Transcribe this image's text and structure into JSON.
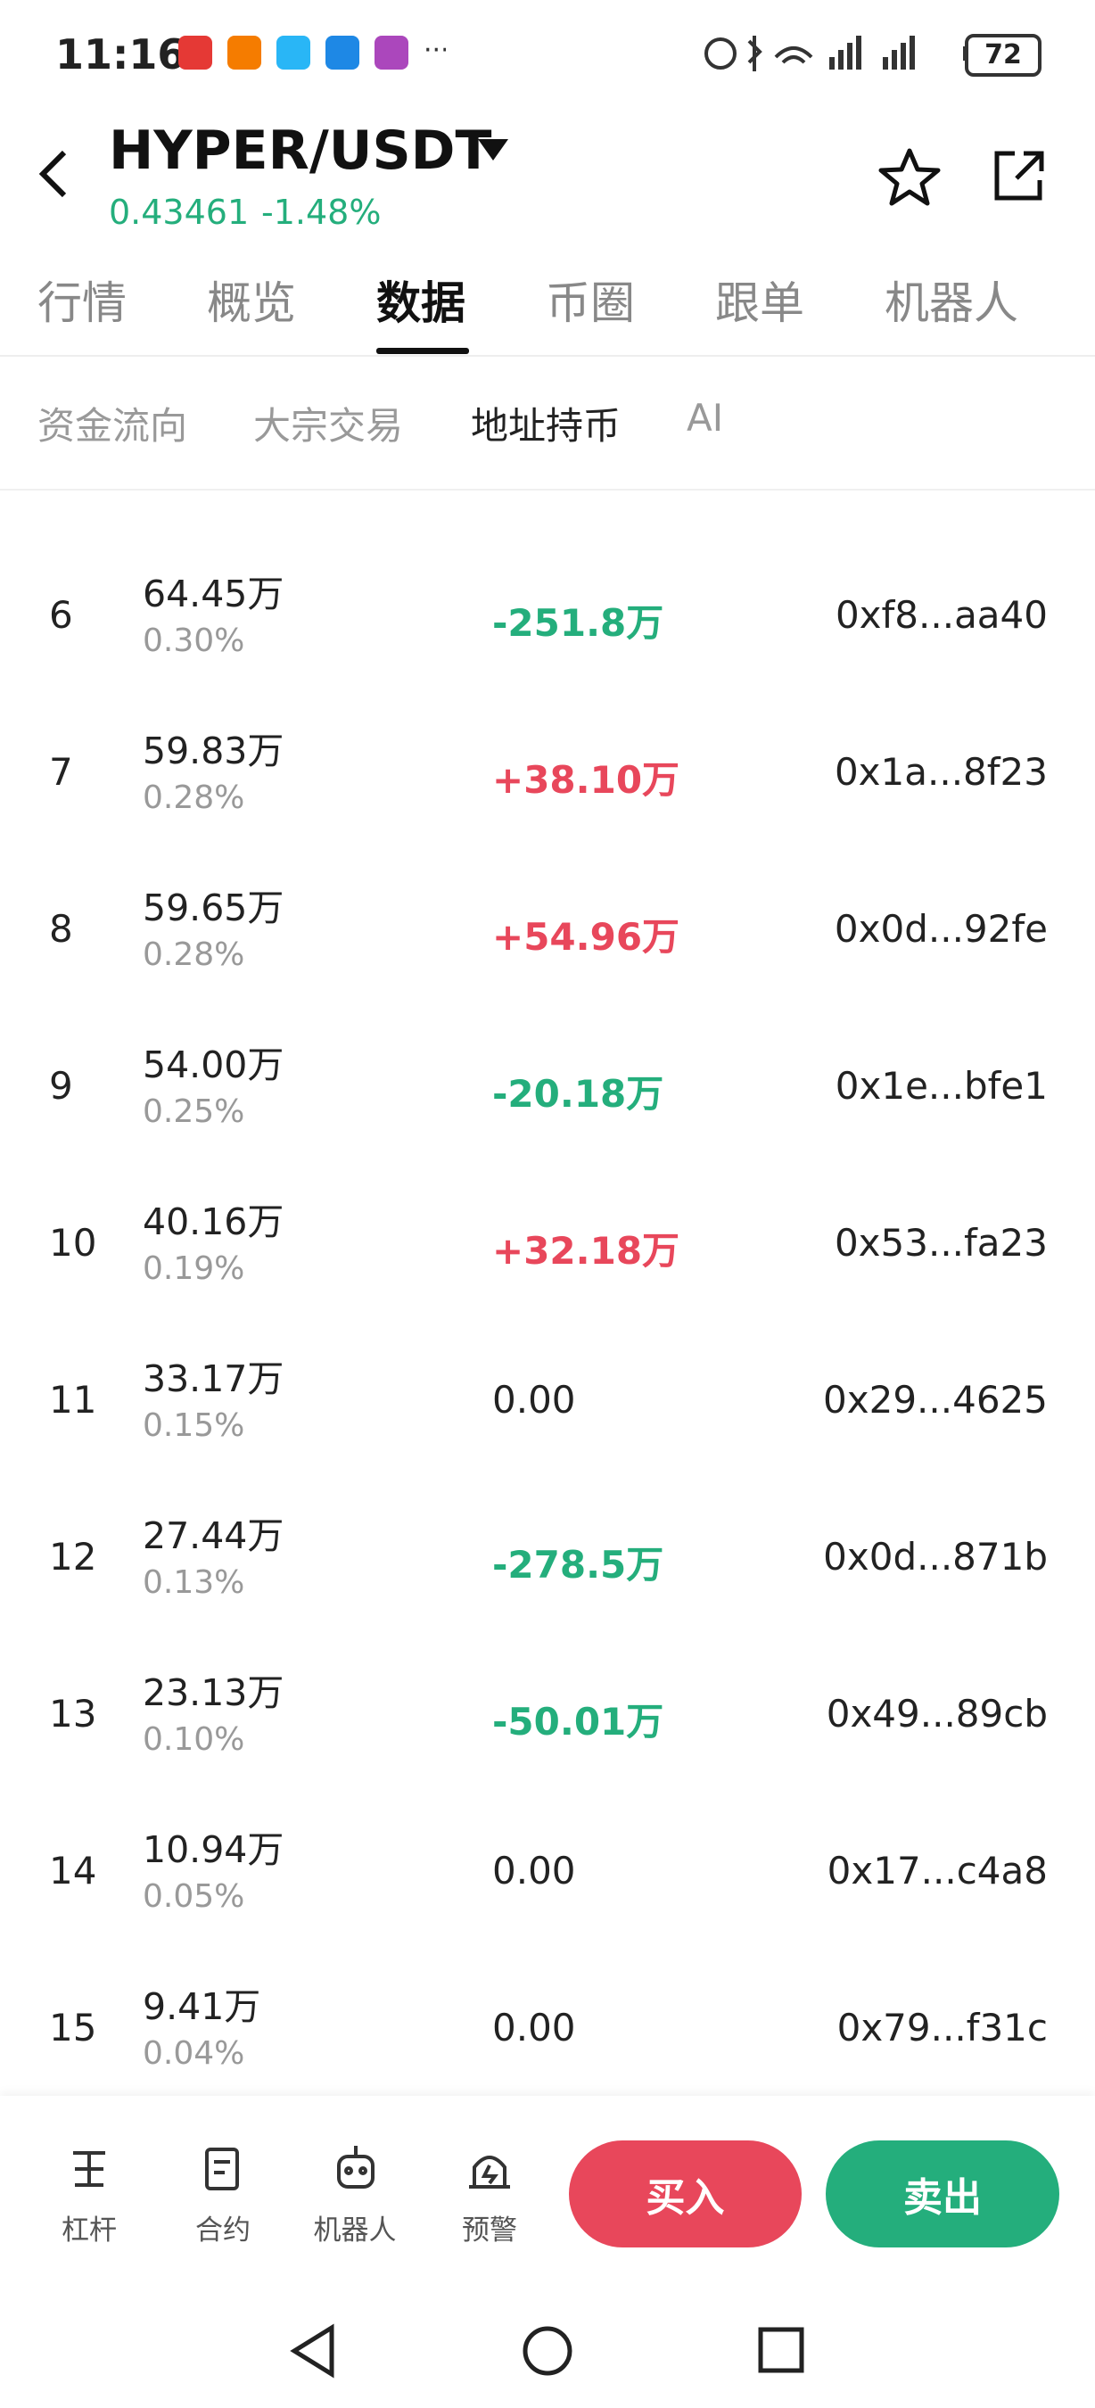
{
  "status_bar": {
    "time": "11:16",
    "battery": "72"
  },
  "header": {
    "pair": "HYPER/USDT",
    "price": "0.43461",
    "change": "-1.48%"
  },
  "tabs": [
    "行情",
    "概览",
    "数据",
    "币圈",
    "跟单",
    "机器人"
  ],
  "active_tab": 2,
  "subtabs": [
    "资金流向",
    "大宗交易",
    "地址持币",
    "AI"
  ],
  "active_subtab": 2,
  "colors": {
    "up": "#e8475b",
    "down": "#24ae7c",
    "neutral": "#222222"
  },
  "rows": [
    {
      "rank": "6",
      "amount": "64.45万",
      "pct": "0.30%",
      "change": "-251.8万",
      "address": "0xf8...aa40"
    },
    {
      "rank": "7",
      "amount": "59.83万",
      "pct": "0.28%",
      "change": "+38.10万",
      "address": "0x1a...8f23"
    },
    {
      "rank": "8",
      "amount": "59.65万",
      "pct": "0.28%",
      "change": "+54.96万",
      "address": "0x0d...92fe"
    },
    {
      "rank": "9",
      "amount": "54.00万",
      "pct": "0.25%",
      "change": "-20.18万",
      "address": "0x1e...bfe1"
    },
    {
      "rank": "10",
      "amount": "40.16万",
      "pct": "0.19%",
      "change": "+32.18万",
      "address": "0x53...fa23"
    },
    {
      "rank": "11",
      "amount": "33.17万",
      "pct": "0.15%",
      "change": "0.00",
      "address": "0x29...4625"
    },
    {
      "rank": "12",
      "amount": "27.44万",
      "pct": "0.13%",
      "change": "-278.5万",
      "address": "0x0d...871b"
    },
    {
      "rank": "13",
      "amount": "23.13万",
      "pct": "0.10%",
      "change": "-50.01万",
      "address": "0x49...89cb"
    },
    {
      "rank": "14",
      "amount": "10.94万",
      "pct": "0.05%",
      "change": "0.00",
      "address": "0x17...c4a8"
    },
    {
      "rank": "15",
      "amount": "9.41万",
      "pct": "0.04%",
      "change": "0.00",
      "address": "0x79...f31c"
    }
  ],
  "bottom_nav": [
    "杠杆",
    "合约",
    "机器人",
    "预警"
  ],
  "buttons": {
    "buy": "买入",
    "sell": "卖出"
  }
}
